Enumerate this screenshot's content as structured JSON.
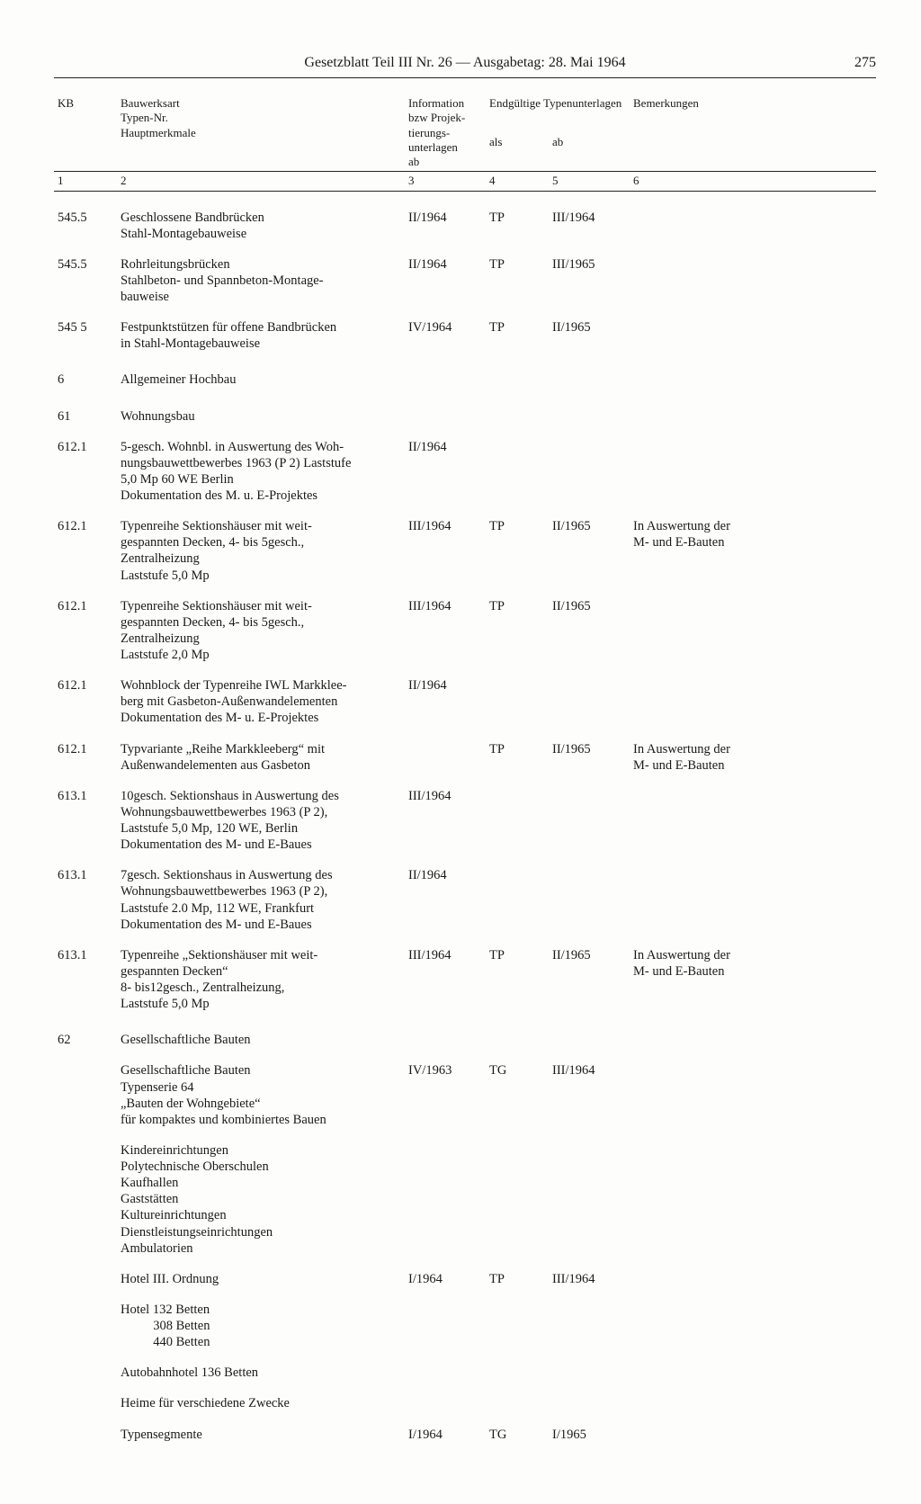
{
  "header": {
    "title": "Gesetzblatt Teil III Nr. 26 — Ausgabetag: 28. Mai 1964",
    "page_number": "275"
  },
  "columns": {
    "kb": "KB",
    "desc_l1": "Bauwerksart",
    "desc_l2": "bzw  Projek-",
    "desc_l3": "Typen-Nr.",
    "desc_l4": "Hauptmerkmale",
    "c3_l1": "Information",
    "c3_l2": "bzw  Projek-",
    "c3_l3": "tierungs-",
    "c3_l4": "unterlagen",
    "c3_l5": "ab",
    "c45_span": "Endgültige Typenunterlagen",
    "c4": "als",
    "c5": "ab",
    "c6": "Bemerkungen",
    "n1": "1",
    "n2": "2",
    "n3": "3",
    "n4": "4",
    "n5": "5",
    "n6": "6"
  },
  "rows": [
    {
      "kb": "545.5",
      "desc": "Geschlossene Bandbrücken\nStahl-Montagebauweise",
      "c3": "II/1964",
      "c4": "TP",
      "c5": "III/1964",
      "c6": ""
    },
    {
      "kb": "545.5",
      "desc": "Rohrleitungsbrücken\nStahlbeton- und Spannbeton-Montage-\nbauweise",
      "c3": "II/1964",
      "c4": "TP",
      "c5": "III/1965",
      "c6": ""
    },
    {
      "kb": "545 5",
      "desc": "Festpunktstützen für offene Bandbrücken\nin Stahl-Montagebauweise",
      "c3": "IV/1964",
      "c4": "TP",
      "c5": "II/1965",
      "c6": ""
    },
    {
      "kb": "6",
      "section": true,
      "desc": "Allgemeiner Hochbau"
    },
    {
      "kb": "61",
      "section": true,
      "desc": "Wohnungsbau"
    },
    {
      "kb": "612.1",
      "desc": "5-gesch. Wohnbl. in Auswertung des Woh-\nnungsbauwettbewerbes 1963 (P 2) Laststufe\n5,0 Mp 60 WE Berlin\nDokumentation des M. u. E-Projektes",
      "c3": "II/1964",
      "c4": "",
      "c5": "",
      "c6": ""
    },
    {
      "kb": "612.1",
      "desc": "Typenreihe Sektionshäuser mit weit-\ngespannten Decken, 4- bis 5gesch.,\nZentralheizung\nLaststufe 5,0 Mp",
      "c3": "III/1964",
      "c4": "TP",
      "c5": "II/1965",
      "c6": "In Auswertung der\nM- und E-Bauten"
    },
    {
      "kb": "612.1",
      "desc": "Typenreihe Sektionshäuser mit weit-\ngespannten Decken, 4- bis 5gesch.,\nZentralheizung\nLaststufe 2,0 Mp",
      "c3": "III/1964",
      "c4": "TP",
      "c5": "II/1965",
      "c6": ""
    },
    {
      "kb": "612.1",
      "desc": "Wohnblock der Typenreihe IWL Markklee-\nberg mit Gasbeton-Außenwandelementen\nDokumentation des M- u. E-Projektes",
      "c3": "II/1964",
      "c4": "",
      "c5": "",
      "c6": ""
    },
    {
      "kb": "612.1",
      "desc": "Typvariante „Reihe Markkleeberg“ mit\nAußenwandelementen aus Gasbeton",
      "c3": "",
      "c4": "TP",
      "c5": "II/1965",
      "c6": "In Auswertung der\nM- und E-Bauten"
    },
    {
      "kb": "613.1",
      "desc": "10gesch. Sektionshaus in Auswertung des\nWohnungsbauwettbewerbes 1963 (P 2),\nLaststufe 5,0 Mp, 120 WE, Berlin\nDokumentation des M- und E-Baues",
      "c3": "III/1964",
      "c4": "",
      "c5": "",
      "c6": ""
    },
    {
      "kb": "613.1",
      "desc": "7gesch. Sektionshaus in Auswertung des\nWohnungsbauwettbewerbes 1963 (P 2),\nLaststufe 2.0 Mp, 112 WE, Frankfurt\nDokumentation des M- und E-Baues",
      "c3": "II/1964",
      "c4": "",
      "c5": "",
      "c6": ""
    },
    {
      "kb": "613.1",
      "desc": "Typenreihe „Sektionshäuser mit weit-\ngespannten Decken“\n8- bis12gesch., Zentralheizung,\nLaststufe 5,0 Mp",
      "c3": "III/1964",
      "c4": "TP",
      "c5": "II/1965",
      "c6": "In Auswertung der\nM- und E-Bauten"
    },
    {
      "kb": "62",
      "section": true,
      "desc": "Gesellschaftliche Bauten"
    },
    {
      "kb": "",
      "desc": "Gesellschaftliche Bauten\nTypenserie 64\n„Bauten der Wohngebiete“\nfür kompaktes und kombiniertes Bauen",
      "c3": "IV/1963",
      "c4": "TG",
      "c5": "III/1964",
      "c6": ""
    },
    {
      "kb": "",
      "desc": "Kindereinrichtungen\nPolytechnische Oberschulen\nKaufhallen\nGaststätten\nKultureinrichtungen\nDienstleistungseinrichtungen\nAmbulatorien",
      "c3": "",
      "c4": "",
      "c5": "",
      "c6": ""
    },
    {
      "kb": "",
      "desc": "Hotel III. Ordnung",
      "c3": "I/1964",
      "c4": "TP",
      "c5": "III/1964",
      "c6": ""
    },
    {
      "kb": "",
      "desc": "Hotel 132 Betten\n          308 Betten\n          440 Betten",
      "c3": "",
      "c4": "",
      "c5": "",
      "c6": "",
      "pre": true
    },
    {
      "kb": "",
      "desc": "Autobahnhotel 136 Betten",
      "c3": "",
      "c4": "",
      "c5": "",
      "c6": ""
    },
    {
      "kb": "",
      "desc": "Heime für verschiedene Zwecke",
      "c3": "",
      "c4": "",
      "c5": "",
      "c6": ""
    },
    {
      "kb": "",
      "desc": "Typensegmente",
      "c3": "I/1964",
      "c4": "TG",
      "c5": "I/1965",
      "c6": ""
    }
  ]
}
